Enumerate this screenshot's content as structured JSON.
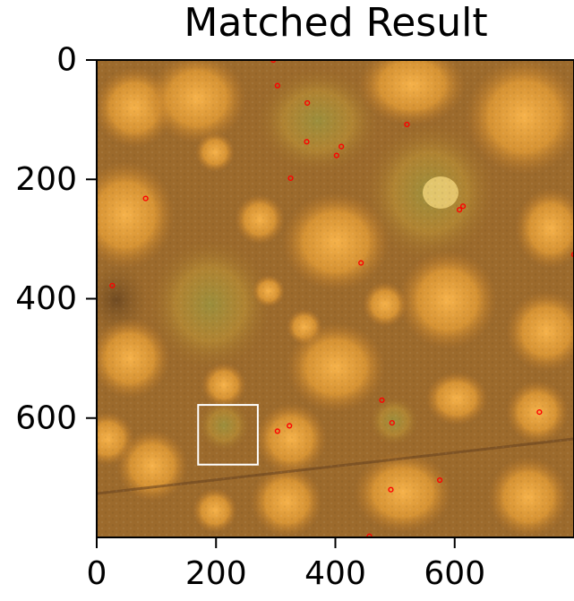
{
  "chart_data": {
    "type": "scatter",
    "title": "Matched Result",
    "xlabel": "",
    "ylabel": "",
    "xlim": [
      0,
      800
    ],
    "ylim": [
      800,
      0
    ],
    "y_inverted": true,
    "grid": false,
    "background": "microscopy-image",
    "x_ticks": [
      "0",
      "200",
      "400",
      "600"
    ],
    "y_ticks": [
      "0",
      "200",
      "400",
      "600"
    ],
    "series": [
      {
        "marker": "circle-outline",
        "color": "#ff0000",
        "points": [
          {
            "x": 296,
            "y": 0
          },
          {
            "x": 303,
            "y": 43
          },
          {
            "x": 353,
            "y": 72
          },
          {
            "x": 520,
            "y": 108
          },
          {
            "x": 352,
            "y": 137
          },
          {
            "x": 410,
            "y": 145
          },
          {
            "x": 402,
            "y": 160
          },
          {
            "x": 325,
            "y": 198
          },
          {
            "x": 82,
            "y": 232
          },
          {
            "x": 614,
            "y": 245
          },
          {
            "x": 608,
            "y": 251
          },
          {
            "x": 800,
            "y": 326
          },
          {
            "x": 443,
            "y": 340
          },
          {
            "x": 26,
            "y": 378
          },
          {
            "x": 478,
            "y": 570
          },
          {
            "x": 742,
            "y": 590
          },
          {
            "x": 495,
            "y": 608
          },
          {
            "x": 323,
            "y": 613
          },
          {
            "x": 303,
            "y": 622
          },
          {
            "x": 575,
            "y": 704
          },
          {
            "x": 493,
            "y": 720
          },
          {
            "x": 457,
            "y": 798
          }
        ]
      }
    ],
    "annotations": [
      {
        "type": "rectangle",
        "color": "#ffffff",
        "x0": 170,
        "y0": 578,
        "x1": 270,
        "y1": 678
      }
    ]
  }
}
